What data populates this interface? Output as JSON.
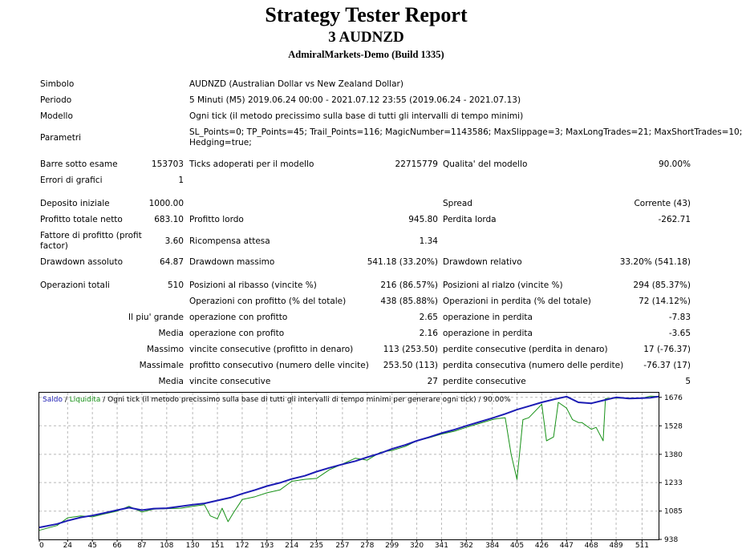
{
  "report": {
    "title": "Strategy Tester Report",
    "subtitle": "3 AUDNZD",
    "broker": "AdmiralMarkets-Demo (Build 1335)"
  },
  "info": {
    "symbol_label": "Simbolo",
    "symbol_value": "AUDNZD (Australian Dollar vs New Zealand Dollar)",
    "period_label": "Periodo",
    "period_value": "5 Minuti (M5) 2019.06.24 00:00 - 2021.07.12 23:55 (2019.06.24 - 2021.07.13)",
    "model_label": "Modello",
    "model_value": "Ogni tick (il metodo precissimo sulla base di tutti gli intervalli di tempo minimi)",
    "params_label": "Parametri",
    "params_value_line1": "SL_Points=0; TP_Points=45; Trail_Points=116; MagicNumber=1143586; MaxSlippage=3; MaxLongTrades=21; MaxShortTrades=10;",
    "params_value_line2": "Hedging=true;"
  },
  "stats": {
    "bars_label": "Barre sotto esame",
    "bars_value": "153703",
    "ticks_label": "Ticks adoperati per il modello",
    "ticks_value": "22715779",
    "quality_label": "Qualita' del modello",
    "quality_value": "90.00%",
    "errors_label": "Errori di grafici",
    "errors_value": "1",
    "deposit_label": "Deposito iniziale",
    "deposit_value": "1000.00",
    "spread_label": "Spread",
    "spread_value": "Corrente (43)",
    "net_label": "Profitto totale netto",
    "net_value": "683.10",
    "gross_profit_label": "Profitto lordo",
    "gross_profit_value": "945.80",
    "gross_loss_label": "Perdita lorda",
    "gross_loss_value": "-262.71",
    "pf_label_line1": "Fattore di profitto (profit",
    "pf_label_line2": "factor)",
    "pf_value": "3.60",
    "expected_label": "Ricompensa attesa",
    "expected_value": "1.34",
    "dd_abs_label": "Drawdown assoluto",
    "dd_abs_value": "64.87",
    "dd_max_label": "Drawdown massimo",
    "dd_max_value": "541.18 (33.20%)",
    "dd_rel_label": "Drawdown relativo",
    "dd_rel_value": "33.20% (541.18)",
    "total_trades_label": "Operazioni totali",
    "total_trades_value": "510",
    "short_label": "Posizioni al ribasso (vincite %)",
    "short_value": "216 (86.57%)",
    "long_label": "Posizioni al rialzo (vincite %)",
    "long_value": "294 (85.37%)",
    "profit_trades_label": "Operazioni con profitto (% del totale)",
    "profit_trades_value": "438 (85.88%)",
    "loss_trades_label": "Operazioni in perdita (% del totale)",
    "loss_trades_value": "72 (14.12%)",
    "largest_label": "Il piu' grande",
    "largest_profit_label": "operazione con profitto",
    "largest_profit_value": "2.65",
    "largest_loss_label": "operazione in perdita",
    "largest_loss_value": "-7.83",
    "average_label": "Media",
    "average_profit_label": "operazione con profito",
    "average_profit_value": "2.16",
    "average_loss_label": "operazione in perdita",
    "average_loss_value": "-3.65",
    "max_label": "Massimo",
    "max_wins_label": "vincite consecutive (profitto in denaro)",
    "max_wins_value": "113 (253.50)",
    "max_losses_label": "perdite consecutive (perdita in denaro)",
    "max_losses_value": "17 (-76.37)",
    "maximal_label": "Massimale",
    "maximal_profit_label": "profitto consecutivo (numero delle vincite)",
    "maximal_profit_value": "253.50 (113)",
    "maximal_loss_label": "perdita consecutiva (numero delle perdite)",
    "maximal_loss_value": "-76.37 (17)",
    "avg_consec_label": "Media",
    "avg_wins_label": "vincite consecutive",
    "avg_wins_value": "27",
    "avg_losses_label": "perdite consecutive",
    "avg_losses_value": "5"
  },
  "chart_data": {
    "type": "line",
    "legend_balance": "Saldo",
    "legend_separator": " / ",
    "legend_equity": "Liquidita",
    "legend_rest": " / Ogni tick (il metodo precissimo sulla base di tutti gli intervalli di tempo minimi per generare ogni tick) / 90.00%",
    "xlim": [
      0,
      525
    ],
    "ylim": [
      938,
      1700
    ],
    "x_ticks": [
      "0",
      "24",
      "45",
      "66",
      "87",
      "108",
      "130",
      "151",
      "172",
      "193",
      "214",
      "235",
      "257",
      "278",
      "299",
      "320",
      "341",
      "362",
      "384",
      "405",
      "426",
      "447",
      "468",
      "489",
      "511"
    ],
    "y_ticks": [
      "1676",
      "1528",
      "1380",
      "1233",
      "1085",
      "938"
    ],
    "grid": true,
    "colors": {
      "balance": "#1c1cb4",
      "equity": "#179117",
      "grid": "#b8b8b8"
    },
    "series": [
      {
        "name": "Saldo",
        "x": [
          0,
          15,
          24,
          35,
          45,
          55,
          66,
          76,
          87,
          97,
          108,
          120,
          130,
          140,
          151,
          162,
          172,
          183,
          193,
          204,
          214,
          225,
          235,
          246,
          257,
          268,
          278,
          289,
          299,
          310,
          320,
          330,
          341,
          352,
          362,
          373,
          384,
          395,
          405,
          415,
          426,
          436,
          447,
          457,
          468,
          478,
          489,
          500,
          511,
          518,
          525
        ],
        "y": [
          1000,
          1018,
          1035,
          1052,
          1062,
          1075,
          1090,
          1103,
          1090,
          1098,
          1100,
          1110,
          1118,
          1125,
          1140,
          1155,
          1175,
          1195,
          1215,
          1232,
          1252,
          1268,
          1290,
          1310,
          1328,
          1345,
          1365,
          1385,
          1408,
          1428,
          1450,
          1468,
          1490,
          1508,
          1528,
          1548,
          1568,
          1590,
          1612,
          1630,
          1650,
          1665,
          1680,
          1650,
          1645,
          1660,
          1676,
          1670,
          1672,
          1674,
          1680
        ]
      },
      {
        "name": "Liquidita",
        "x": [
          0,
          15,
          24,
          35,
          45,
          55,
          66,
          76,
          87,
          97,
          108,
          120,
          130,
          140,
          145,
          151,
          155,
          160,
          165,
          172,
          183,
          193,
          204,
          214,
          225,
          235,
          246,
          257,
          268,
          278,
          289,
          299,
          310,
          320,
          330,
          341,
          352,
          362,
          373,
          384,
          388,
          395,
          400,
          405,
          410,
          415,
          426,
          430,
          436,
          440,
          447,
          452,
          457,
          460,
          468,
          472,
          478,
          480,
          489,
          500,
          511,
          518,
          525
        ],
        "y": [
          985,
          1010,
          1050,
          1060,
          1055,
          1070,
          1085,
          1110,
          1080,
          1095,
          1098,
          1100,
          1110,
          1118,
          1060,
          1045,
          1100,
          1030,
          1080,
          1145,
          1160,
          1180,
          1195,
          1240,
          1250,
          1255,
          1300,
          1330,
          1360,
          1350,
          1390,
          1400,
          1420,
          1450,
          1465,
          1485,
          1500,
          1520,
          1540,
          1560,
          1565,
          1570,
          1380,
          1250,
          1560,
          1570,
          1640,
          1450,
          1470,
          1650,
          1620,
          1560,
          1545,
          1545,
          1510,
          1520,
          1450,
          1670,
          1672,
          1672,
          1672,
          1682,
          1680
        ]
      }
    ]
  }
}
